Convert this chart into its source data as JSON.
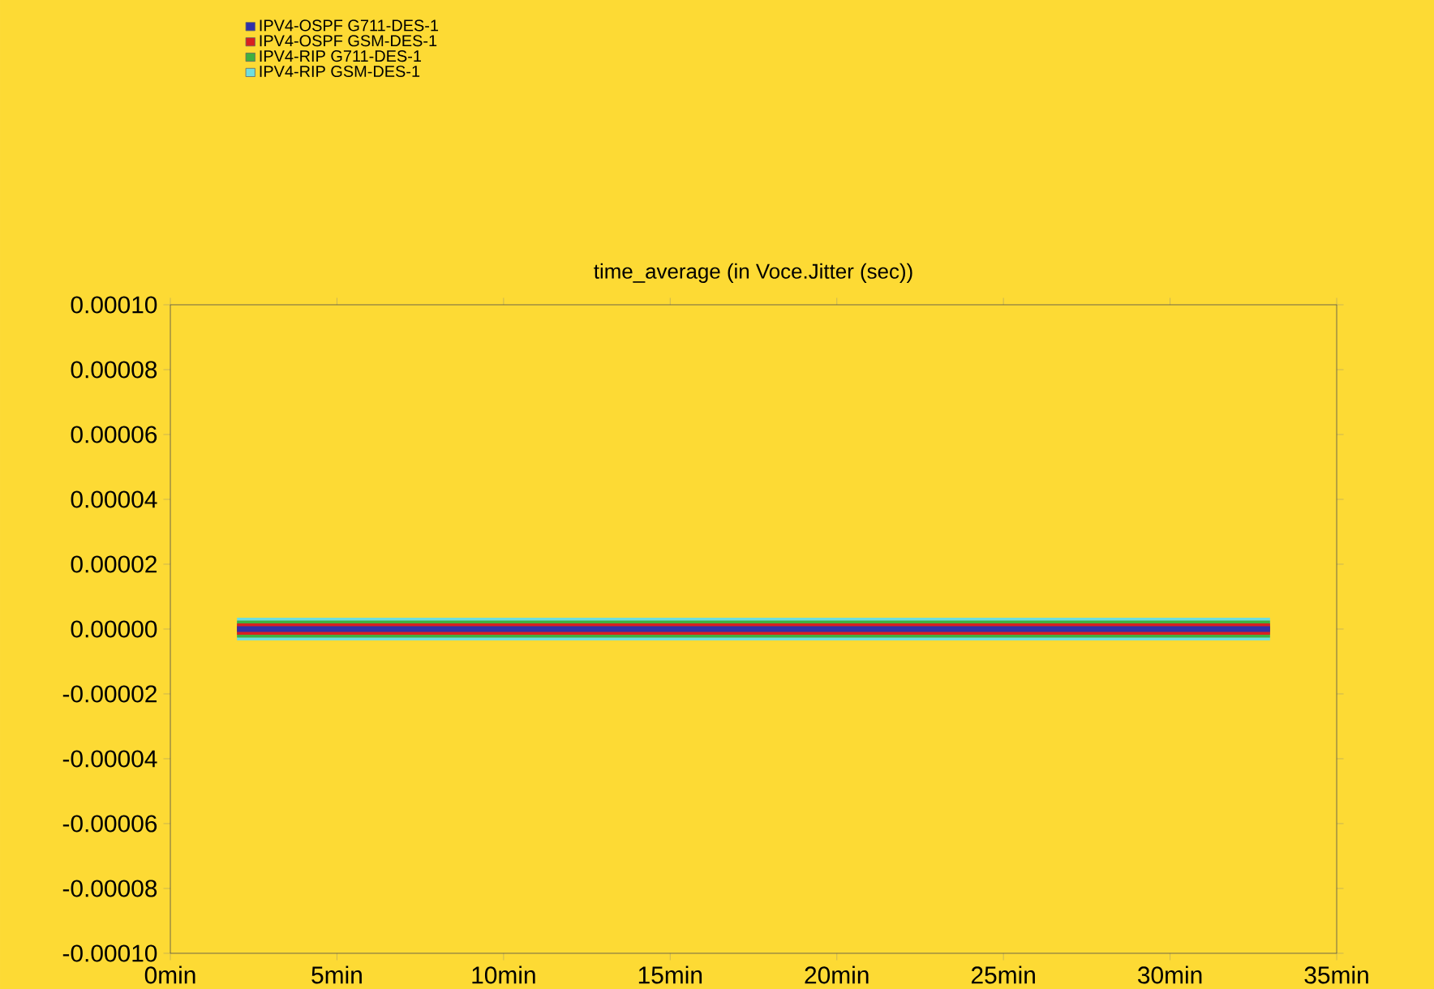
{
  "chart_data": {
    "type": "line",
    "title": "time_average (in Voce.Jitter (sec))",
    "x": [
      2,
      33
    ],
    "series": [
      {
        "name": "IPV4-OSPF G711-DES-1",
        "color": "#3030a8",
        "values": [
          0,
          0
        ]
      },
      {
        "name": "IPV4-OSPF GSM-DES-1",
        "color": "#d82020",
        "values": [
          0,
          0
        ]
      },
      {
        "name": "IPV4-RIP G711-DES-1",
        "color": "#40b040",
        "values": [
          0,
          0
        ]
      },
      {
        "name": "IPV4-RIP GSM-DES-1",
        "color": "#70dede",
        "values": [
          0,
          0
        ]
      }
    ],
    "xlim": [
      0,
      35
    ],
    "ylim": [
      -0.0001,
      0.0001
    ],
    "xticks": [
      {
        "value": 0,
        "label": "0min"
      },
      {
        "value": 5,
        "label": "5min"
      },
      {
        "value": 10,
        "label": "10min"
      },
      {
        "value": 15,
        "label": "15min"
      },
      {
        "value": 20,
        "label": "20min"
      },
      {
        "value": 25,
        "label": "25min"
      },
      {
        "value": 30,
        "label": "30min"
      },
      {
        "value": 35,
        "label": "35min"
      }
    ],
    "yticks": [
      {
        "value": -0.0001,
        "label": "-0.00010"
      },
      {
        "value": -8e-05,
        "label": "-0.00008"
      },
      {
        "value": -6e-05,
        "label": "-0.00006"
      },
      {
        "value": -4e-05,
        "label": "-0.00004"
      },
      {
        "value": -2e-05,
        "label": "-0.00002"
      },
      {
        "value": 0,
        "label": "0.00000"
      },
      {
        "value": 2e-05,
        "label": "0.00002"
      },
      {
        "value": 4e-05,
        "label": "0.00004"
      },
      {
        "value": 6e-05,
        "label": "0.00006"
      },
      {
        "value": 8e-05,
        "label": "0.00008"
      },
      {
        "value": 0.0001,
        "label": "0.00010"
      }
    ],
    "legend": "top left"
  }
}
